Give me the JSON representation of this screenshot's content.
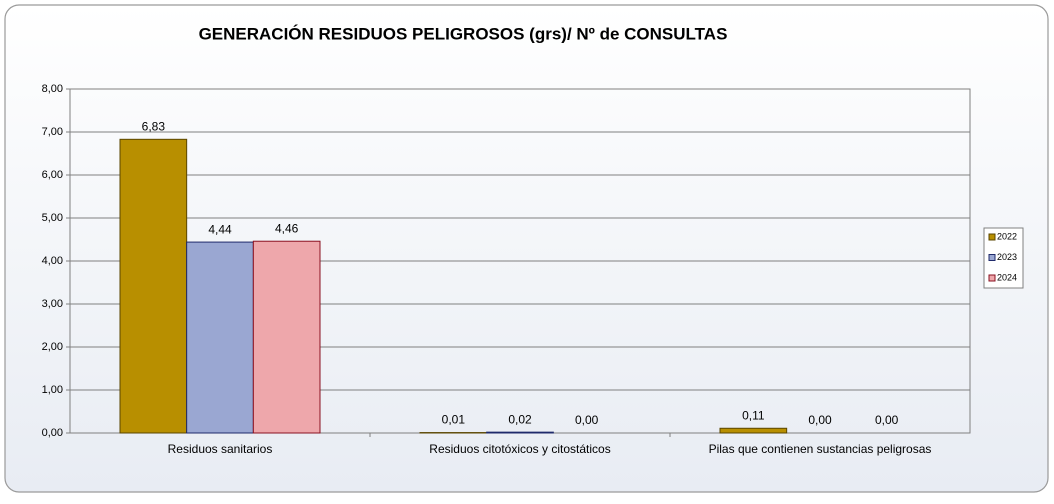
{
  "chart_data": {
    "type": "bar",
    "title": "GENERACIÓN RESIDUOS PELIGROSOS (grs)/ Nº de CONSULTAS",
    "categories": [
      "Residuos sanitarios",
      "Residuos citotóxicos y citostáticos",
      "Pilas que contienen sustancias peligrosas"
    ],
    "series": [
      {
        "name": "2022",
        "color": "#b88f00",
        "values": [
          6.83,
          0.01,
          0.11
        ],
        "value_labels": [
          "6,83",
          "0,01",
          "0,11"
        ]
      },
      {
        "name": "2023",
        "color": "#9aa7d2",
        "values": [
          4.44,
          0.02,
          0.0
        ],
        "value_labels": [
          "4,44",
          "0,02",
          "0,00"
        ]
      },
      {
        "name": "2024",
        "color": "#eea7ab",
        "values": [
          4.46,
          0.0,
          0.0
        ],
        "value_labels": [
          "4,46",
          "0,00",
          "0,00"
        ]
      }
    ],
    "ylim": [
      0,
      8
    ],
    "yticks": [
      {
        "value": 0,
        "label": "0,00"
      },
      {
        "value": 1,
        "label": "1,00"
      },
      {
        "value": 2,
        "label": "2,00"
      },
      {
        "value": 3,
        "label": "3,00"
      },
      {
        "value": 4,
        "label": "4,00"
      },
      {
        "value": 5,
        "label": "5,00"
      },
      {
        "value": 6,
        "label": "6,00"
      },
      {
        "value": 7,
        "label": "7,00"
      },
      {
        "value": 8,
        "label": "8,00"
      }
    ],
    "grid": true,
    "legend": "right"
  }
}
